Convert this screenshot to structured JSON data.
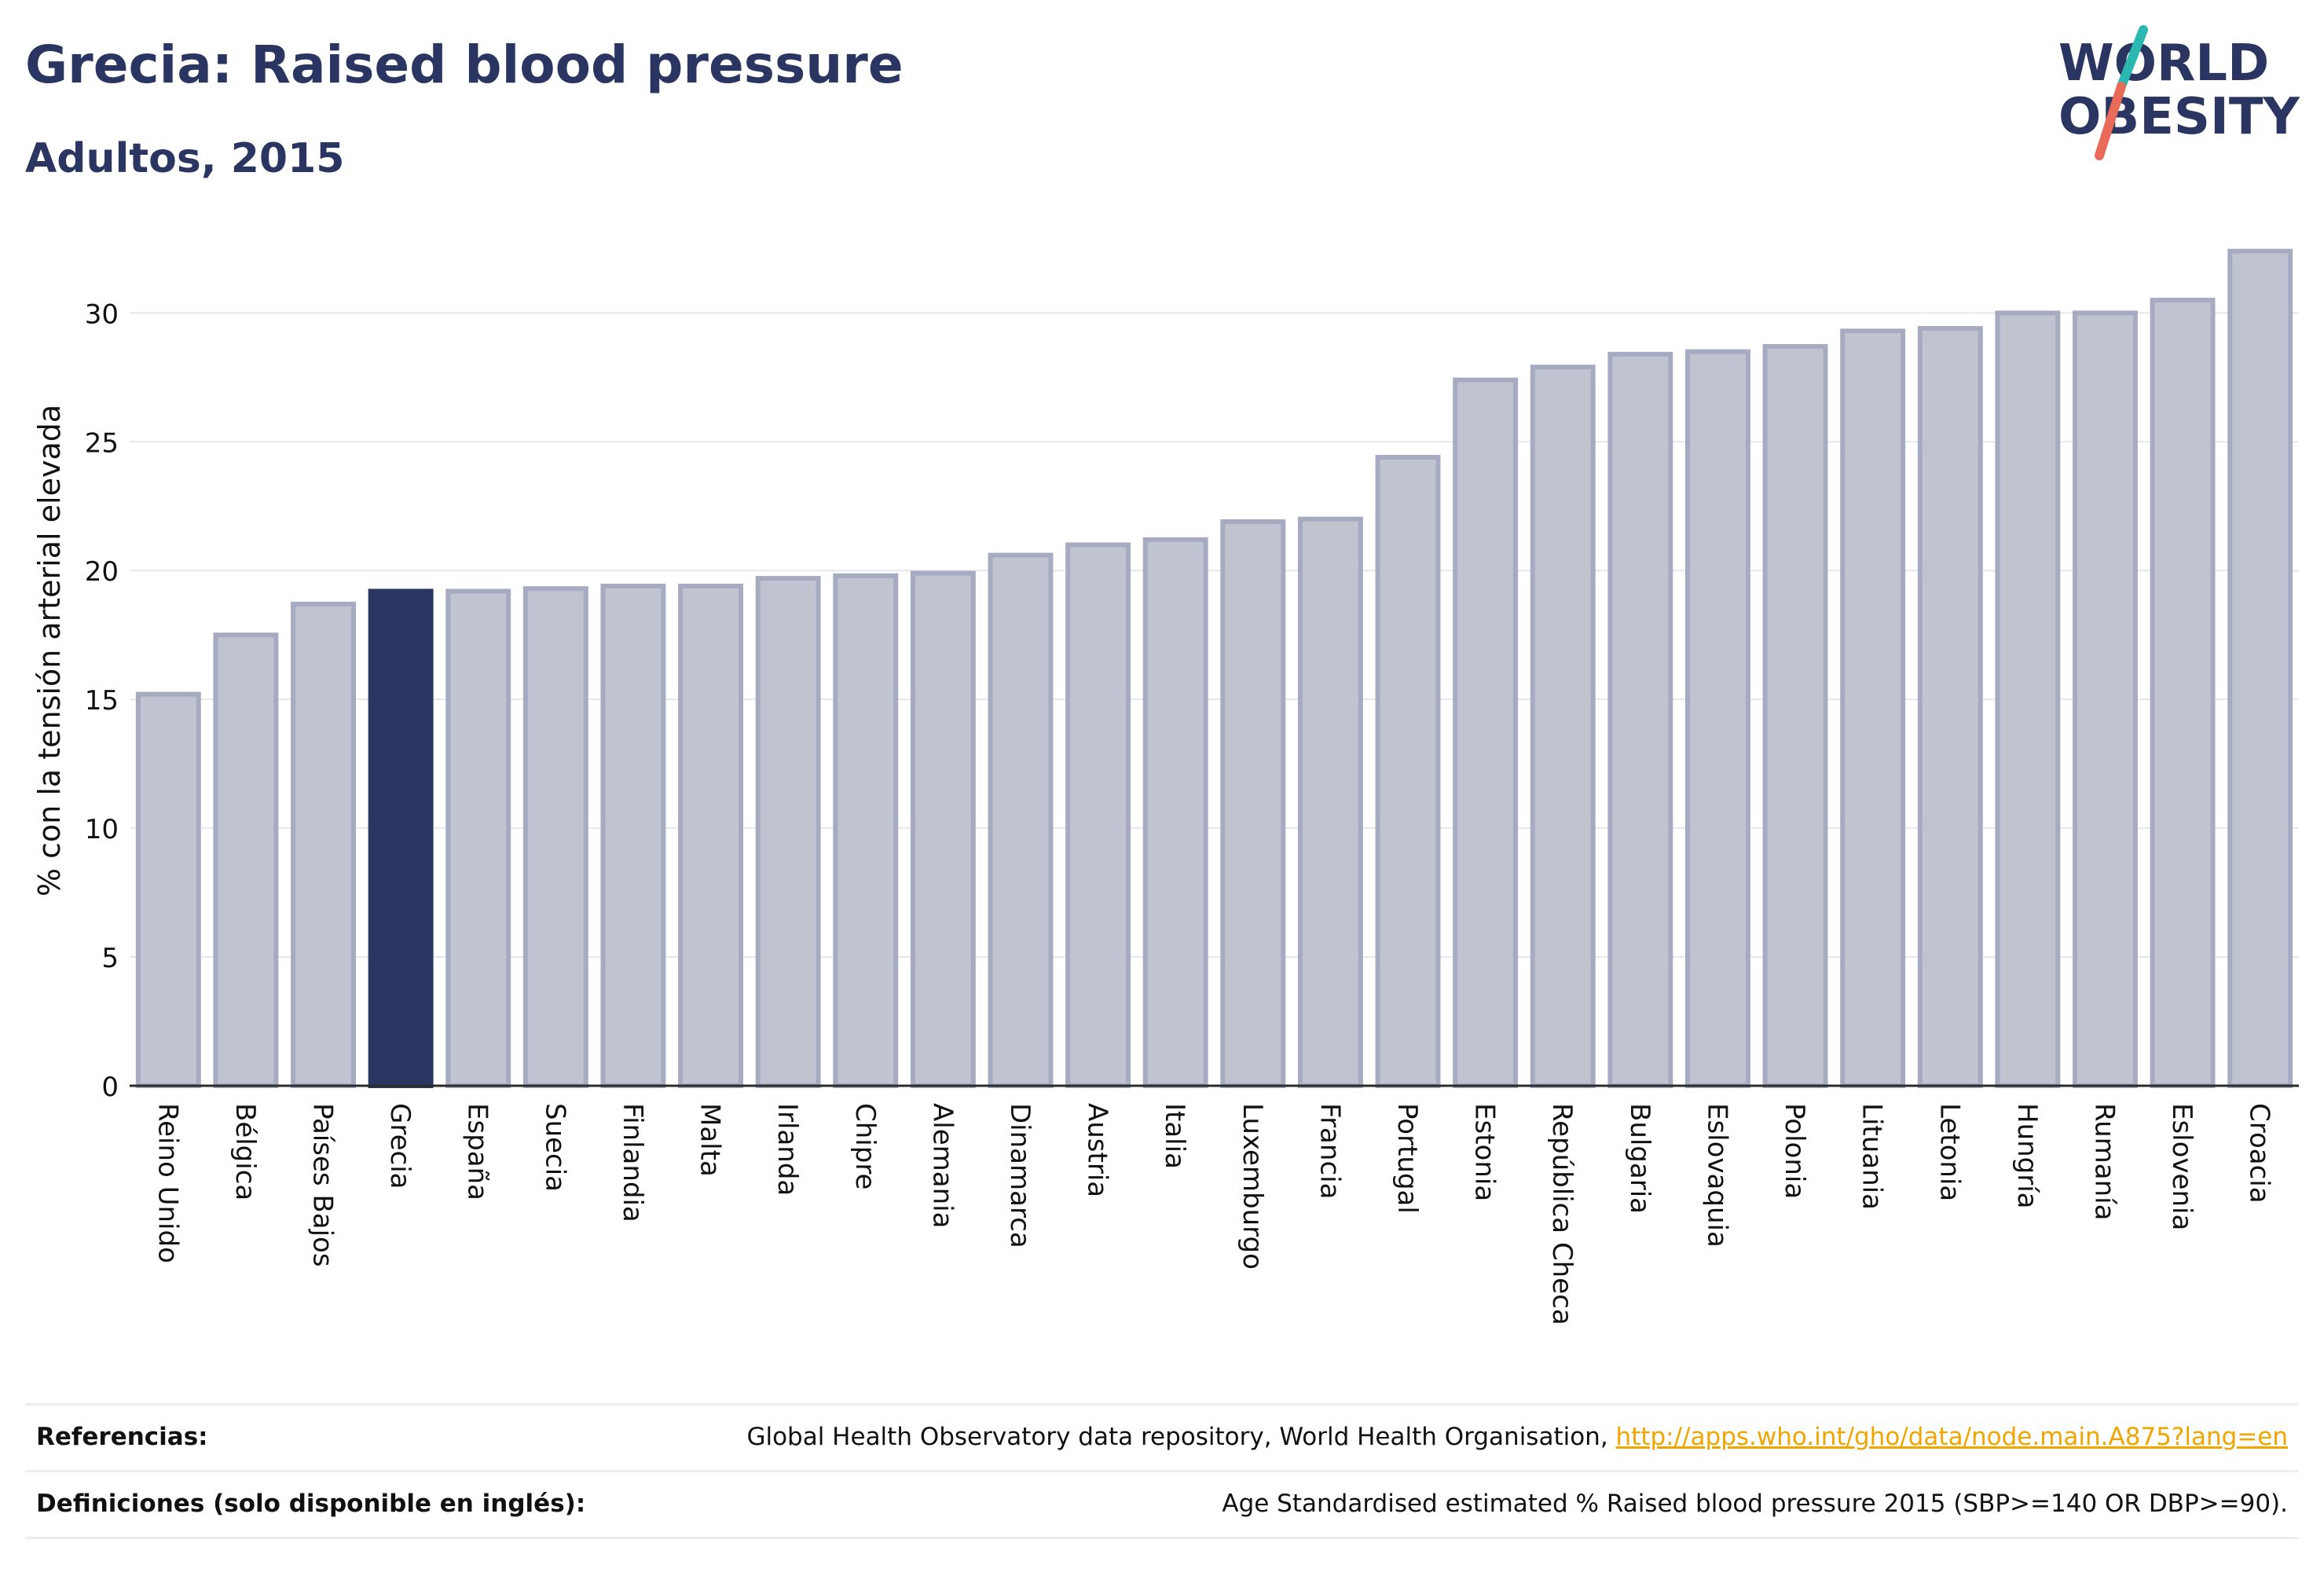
{
  "header": {
    "title": "Grecia: Raised blood pressure",
    "subtitle": "Adultos, 2015"
  },
  "logo": {
    "line1": "WORLD",
    "line2": "OBESITY",
    "colors": {
      "text": "#2a3561",
      "slash_top": "#2bb8b0",
      "slash_bottom": "#ea6a5a"
    }
  },
  "colors": {
    "bar_default_fill": "#c0c3d0",
    "bar_default_stroke": "#a6abc1",
    "bar_highlight": "#2a3561",
    "grid": "#e6e8ef",
    "axis": "#2b2b2b"
  },
  "chart_data": {
    "type": "bar",
    "ylabel": "% con la tensión arterial elevada",
    "xlabel": "",
    "ylim": [
      0,
      33
    ],
    "yticks": [
      0,
      5,
      10,
      15,
      20,
      25,
      30
    ],
    "grid": true,
    "highlight": "Grecia",
    "categories": [
      "Reino Unido",
      "Bélgica",
      "Países Bajos",
      "Grecia",
      "España",
      "Suecia",
      "Finlandia",
      "Malta",
      "Irlanda",
      "Chipre",
      "Alemania",
      "Dinamarca",
      "Austria",
      "Italia",
      "Luxemburgo",
      "Francia",
      "Portugal",
      "Estonia",
      "República Checa",
      "Bulgaria",
      "Eslovaquia",
      "Polonia",
      "Lituania",
      "Letonia",
      "Hungría",
      "Rumanía",
      "Eslovenia",
      "Croacia"
    ],
    "values": [
      15.2,
      17.5,
      18.7,
      19.2,
      19.2,
      19.3,
      19.4,
      19.4,
      19.7,
      19.8,
      19.9,
      20.6,
      21.0,
      21.2,
      21.9,
      22.0,
      24.4,
      27.4,
      27.9,
      28.4,
      28.5,
      28.7,
      29.3,
      29.4,
      30.0,
      30.0,
      30.5,
      32.4
    ]
  },
  "footer": {
    "references_label": "Referencias:",
    "references_text": "Global Health Observatory data repository, World Health Organisation, ",
    "references_link": "http://apps.who.int/gho/data/node.main.A875?lang=en",
    "definitions_label": "Definiciones (solo disponible en inglés):",
    "definitions_text": "Age Standardised estimated % Raised blood pressure 2015 (SBP>=140 OR DBP>=90)."
  }
}
